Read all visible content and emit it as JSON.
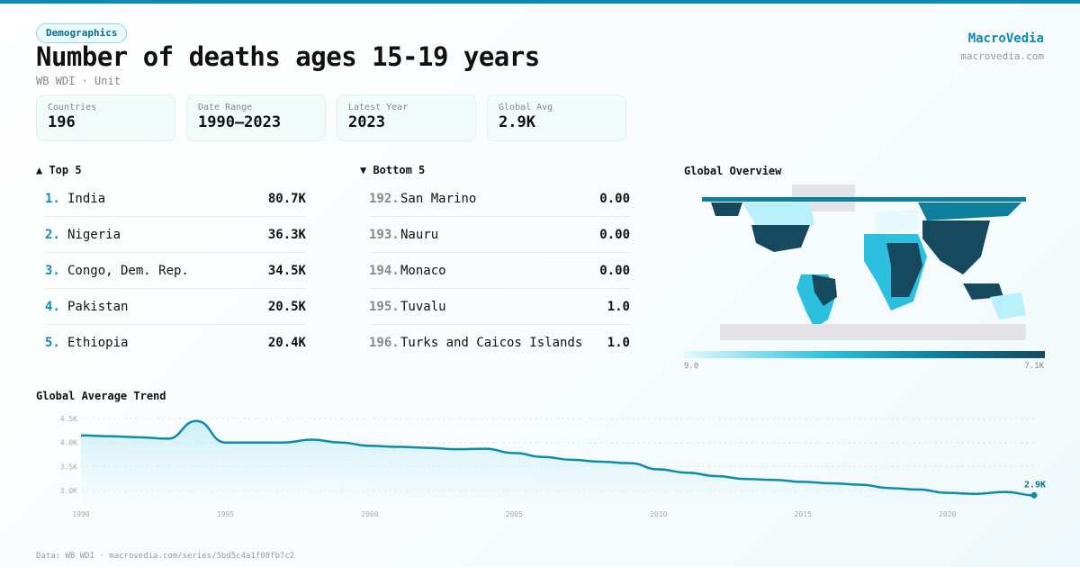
{
  "header": {
    "badge": "Demographics",
    "title": "Number of deaths ages 15-19 years",
    "subtitle": "WB WDI · Unit",
    "brand": "MacroVedia",
    "brand_url": "macrovedia.com"
  },
  "stats": [
    {
      "label": "Countries",
      "value": "196"
    },
    {
      "label": "Date Range",
      "value": "1990–2023"
    },
    {
      "label": "Latest Year",
      "value": "2023"
    },
    {
      "label": "Global Avg",
      "value": "2.9K"
    }
  ],
  "top5": {
    "title": "▲ Top 5",
    "items": [
      {
        "rank": "1.",
        "name": "India",
        "value": "80.7K"
      },
      {
        "rank": "2.",
        "name": "Nigeria",
        "value": "36.3K"
      },
      {
        "rank": "3.",
        "name": "Congo, Dem. Rep.",
        "value": "34.5K"
      },
      {
        "rank": "4.",
        "name": "Pakistan",
        "value": "20.5K"
      },
      {
        "rank": "5.",
        "name": "Ethiopia",
        "value": "20.4K"
      }
    ]
  },
  "bottom5": {
    "title": "▼ Bottom 5",
    "items": [
      {
        "rank": "192.",
        "name": "San Marino",
        "value": "0.00"
      },
      {
        "rank": "193.",
        "name": "Nauru",
        "value": "0.00"
      },
      {
        "rank": "194.",
        "name": "Monaco",
        "value": "0.00"
      },
      {
        "rank": "195.",
        "name": "Tuvalu",
        "value": "1.0"
      },
      {
        "rank": "196.",
        "name": "Turks and Caicos Islands",
        "value": "1.0"
      }
    ]
  },
  "map": {
    "title": "Global Overview",
    "legend_min": "9.0",
    "legend_max": "7.1K",
    "colors": {
      "low": "#e6fafd",
      "mid": "#2cc0de",
      "high": "#0e7f9c",
      "max": "#17495e",
      "nodata": "#e4e4e8"
    }
  },
  "chart_data": {
    "type": "area",
    "title": "Global Average Trend",
    "xlabel": "",
    "ylabel": "",
    "x": [
      1990,
      1991,
      1992,
      1993,
      1994,
      1995,
      1996,
      1997,
      1998,
      1999,
      2000,
      2001,
      2002,
      2003,
      2004,
      2005,
      2006,
      2007,
      2008,
      2009,
      2010,
      2011,
      2012,
      2013,
      2014,
      2015,
      2016,
      2017,
      2018,
      2019,
      2020,
      2021,
      2022,
      2023
    ],
    "values": [
      4150,
      4130,
      4110,
      4080,
      4450,
      4000,
      4000,
      4000,
      4060,
      4000,
      3930,
      3910,
      3890,
      3860,
      3870,
      3780,
      3700,
      3640,
      3600,
      3570,
      3440,
      3370,
      3300,
      3240,
      3220,
      3180,
      3150,
      3120,
      3050,
      3020,
      2950,
      2930,
      2970,
      2900
    ],
    "xticks": [
      "1990",
      "1995",
      "2000",
      "2005",
      "2010",
      "2015",
      "2020"
    ],
    "yticks": [
      {
        "v": 4500,
        "label": "4.5K"
      },
      {
        "v": 4000,
        "label": "4.0K"
      },
      {
        "v": 3500,
        "label": "3.5K"
      },
      {
        "v": 3000,
        "label": "3.0K"
      }
    ],
    "last_label": "2.9K",
    "color": "#0e8aad",
    "grid": true
  },
  "footer": "Data: WB WDI · macrovedia.com/series/5bd5c4a1f08fb7c2"
}
